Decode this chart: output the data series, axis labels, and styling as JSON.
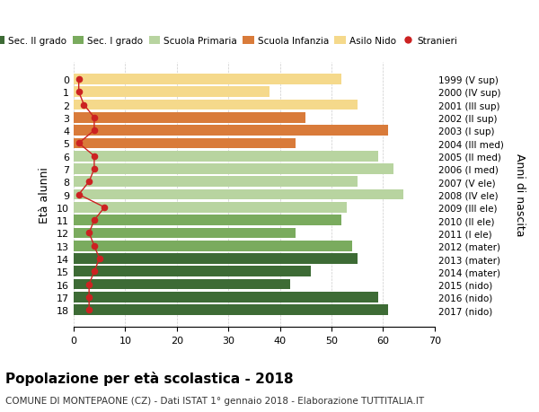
{
  "ages": [
    18,
    17,
    16,
    15,
    14,
    13,
    12,
    11,
    10,
    9,
    8,
    7,
    6,
    5,
    4,
    3,
    2,
    1,
    0
  ],
  "years": [
    "1999 (V sup)",
    "2000 (IV sup)",
    "2001 (III sup)",
    "2002 (II sup)",
    "2003 (I sup)",
    "2004 (III med)",
    "2005 (II med)",
    "2006 (I med)",
    "2007 (V ele)",
    "2008 (IV ele)",
    "2009 (III ele)",
    "2010 (II ele)",
    "2011 (I ele)",
    "2012 (mater)",
    "2013 (mater)",
    "2014 (mater)",
    "2015 (nido)",
    "2016 (nido)",
    "2017 (nido)"
  ],
  "bar_values": [
    61,
    59,
    42,
    46,
    55,
    54,
    43,
    52,
    53,
    64,
    55,
    62,
    59,
    43,
    61,
    45,
    55,
    38,
    52
  ],
  "bar_colors": [
    "#3d6b35",
    "#3d6b35",
    "#3d6b35",
    "#3d6b35",
    "#3d6b35",
    "#7aab5e",
    "#7aab5e",
    "#7aab5e",
    "#b8d4a0",
    "#b8d4a0",
    "#b8d4a0",
    "#b8d4a0",
    "#b8d4a0",
    "#d97b3a",
    "#d97b3a",
    "#d97b3a",
    "#f5d98b",
    "#f5d98b",
    "#f5d98b"
  ],
  "stranieri_values": [
    3,
    3,
    3,
    4,
    5,
    4,
    3,
    4,
    6,
    1,
    3,
    4,
    4,
    1,
    4,
    4,
    2,
    1,
    1
  ],
  "legend_labels": [
    "Sec. II grado",
    "Sec. I grado",
    "Scuola Primaria",
    "Scuola Infanzia",
    "Asilo Nido",
    "Stranieri"
  ],
  "legend_colors": [
    "#3d6b35",
    "#7aab5e",
    "#b8d4a0",
    "#d97b3a",
    "#f5d98b",
    "#cc2222"
  ],
  "ylabel_left": "Età alunni",
  "ylabel_right": "Anni di nascita",
  "xlim": [
    0,
    70
  ],
  "xticks": [
    0,
    10,
    20,
    30,
    40,
    50,
    60,
    70
  ],
  "title": "Popolazione per età scolastica - 2018",
  "subtitle": "COMUNE DI MONTEPAONE (CZ) - Dati ISTAT 1° gennaio 2018 - Elaborazione TUTTITALIA.IT",
  "bg_color": "#ffffff",
  "bar_height": 0.82,
  "grid_color": "#cccccc"
}
